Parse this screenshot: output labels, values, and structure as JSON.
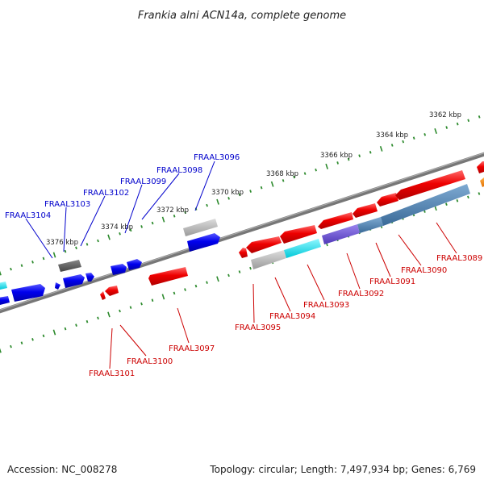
{
  "title": "Frankia alni ACN14a, complete genome",
  "scale_labels": [
    "3362 kbp",
    "3364 kbp",
    "3366 kbp",
    "3368 kbp",
    "3370 kbp",
    "3372 kbp",
    "3374 kbp",
    "3376 kbp"
  ],
  "top_strand_labels": [
    "FRAAL3096",
    "FRAAL3098",
    "FRAAL3099",
    "FRAAL3102",
    "FRAAL3103",
    "FRAAL3104"
  ],
  "bottom_strand_labels": [
    "FRAAL3089",
    "FRAAL3090",
    "FRAAL3091",
    "FRAAL3092",
    "FRAAL3093",
    "FRAAL3094",
    "FRAAL3095",
    "FRAAL3097",
    "FRAAL3100",
    "FRAAL3101"
  ],
  "colors": {
    "forward_gene": "#0000ee",
    "reverse_gene": "#ee0000",
    "top_label": "#0000cc",
    "bottom_label": "#cc0000",
    "tick": "#2e8b2e",
    "backbone": "#777777",
    "pseudo_gene": "#aaaaaa",
    "rna_gene": "#00e0ee",
    "purple_gene": "#6a4fd0",
    "steel_gene": "#4a7fb0",
    "orange_gene": "#ff8c00"
  },
  "footer": {
    "accession": "Accession: NC_008278",
    "stats": "Topology: circular; Length: 7,497,934 bp; Genes: 6,769"
  }
}
